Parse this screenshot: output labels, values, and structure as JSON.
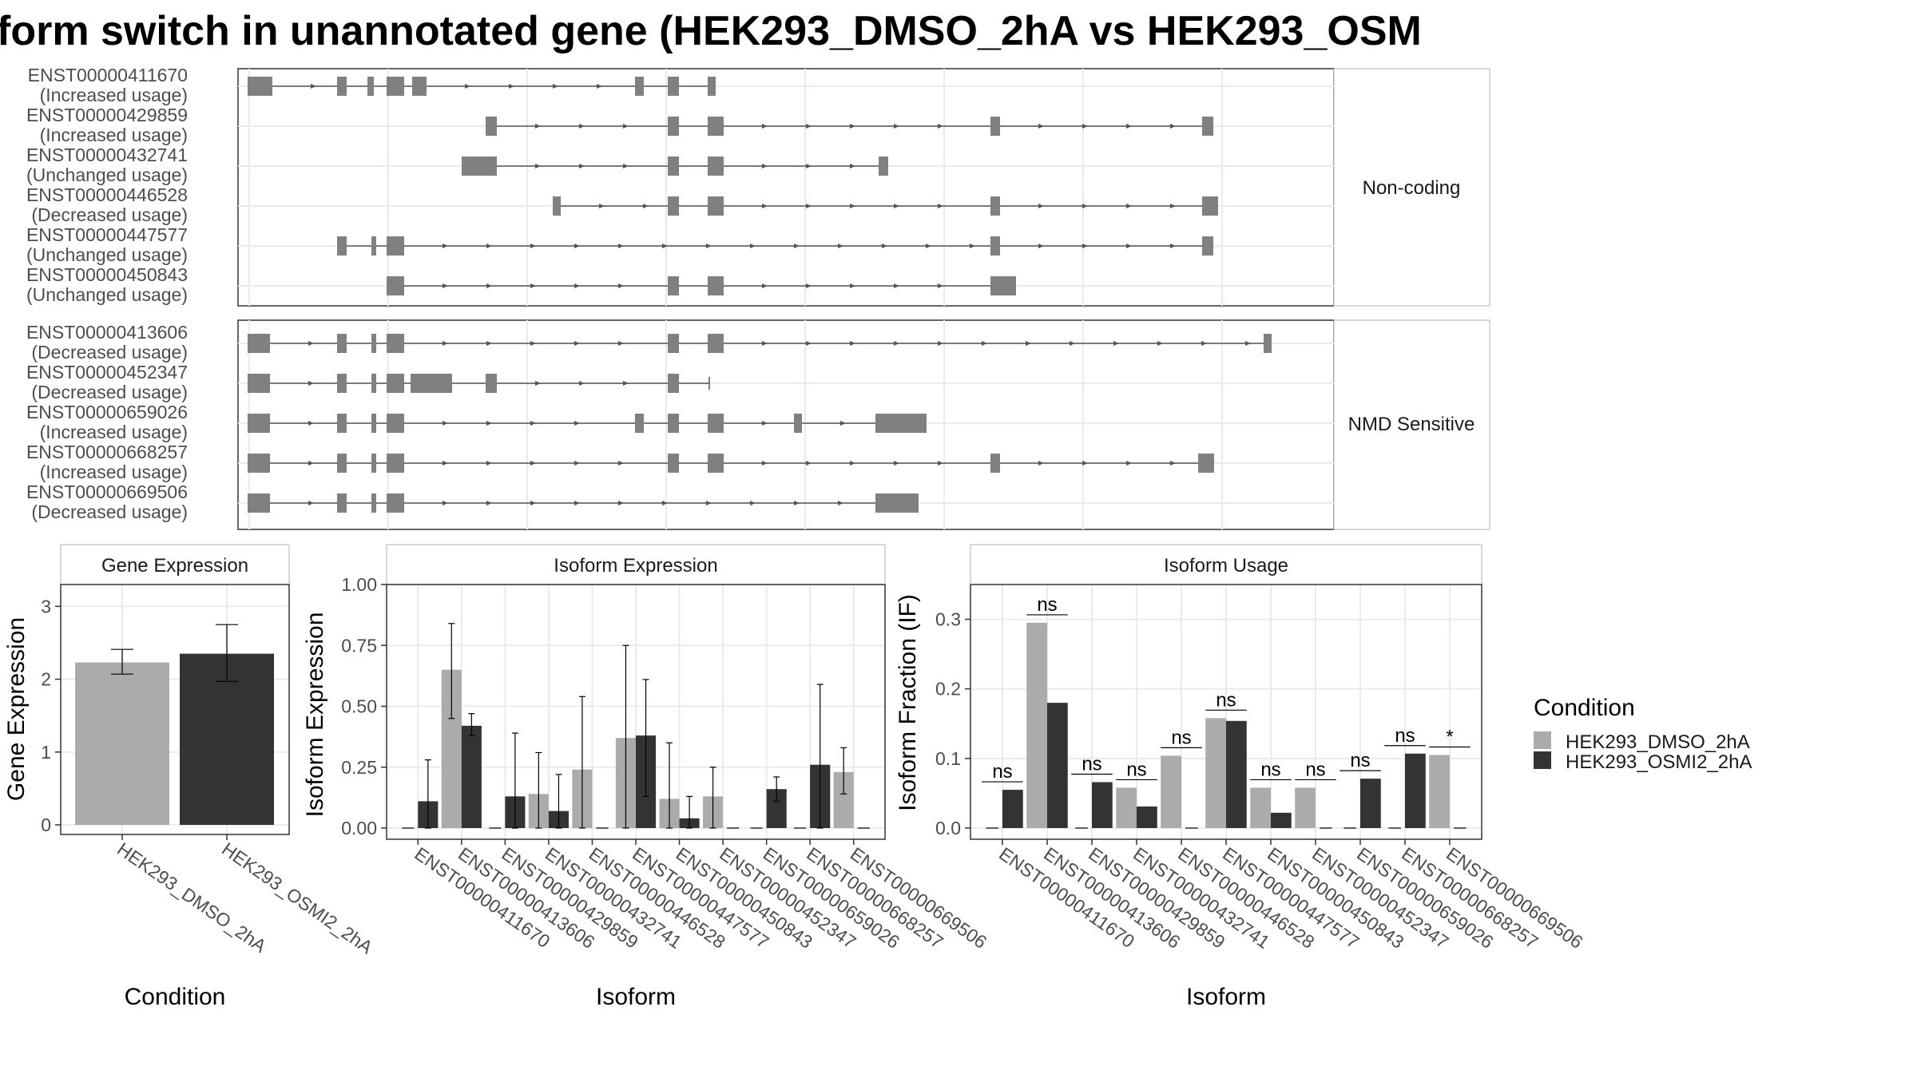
{
  "title": "form switch in unannotated gene (HEK293_DMSO_2hA vs HEK293_OSM",
  "colors": {
    "exon": "#808080",
    "intron": "#555555",
    "dmso": "#ababab",
    "osmi": "#333333",
    "grid": "#ebebeb",
    "frame": "#333333",
    "strip_bg": "#ffffff"
  },
  "structure": {
    "chart_type": "transcript structure diagram",
    "groups": [
      {
        "label": "Non-coding",
        "transcripts": [
          {
            "id": "ENST00000411670",
            "usage": "(Increased usage)"
          },
          {
            "id": "ENST00000429859",
            "usage": "(Increased usage)"
          },
          {
            "id": "ENST00000432741",
            "usage": "(Unchanged usage)"
          },
          {
            "id": "ENST00000446528",
            "usage": "(Decreased usage)"
          },
          {
            "id": "ENST00000447577",
            "usage": "(Unchanged usage)"
          },
          {
            "id": "ENST00000450843",
            "usage": "(Unchanged usage)"
          }
        ]
      },
      {
        "label": "NMD Sensitive",
        "transcripts": [
          {
            "id": "ENST00000413606",
            "usage": "(Decreased usage)"
          },
          {
            "id": "ENST00000452347",
            "usage": "(Decreased usage)"
          },
          {
            "id": "ENST00000659026",
            "usage": "(Increased usage)"
          },
          {
            "id": "ENST00000668257",
            "usage": "(Increased usage)"
          },
          {
            "id": "ENST00000669506",
            "usage": "(Decreased usage)"
          }
        ]
      }
    ]
  },
  "legend": {
    "title": "Condition",
    "items": [
      {
        "label": "HEK293_DMSO_2hA",
        "color": "#ababab"
      },
      {
        "label": "HEK293_OSMI2_2hA",
        "color": "#333333"
      }
    ]
  },
  "chart_data": [
    {
      "type": "bar",
      "title": "Gene Expression",
      "xlabel": "Condition",
      "ylabel": "Gene Expression",
      "ylim": [
        0,
        3.3
      ],
      "yticks": [
        "0",
        "1",
        "2",
        "3"
      ],
      "categories": [
        "HEK293_DMSO_2hA",
        "HEK293_OSMI2_2hA"
      ],
      "values": [
        2.23,
        2.35
      ],
      "errors": [
        [
          2.07,
          2.41
        ],
        [
          1.97,
          2.75
        ]
      ]
    },
    {
      "type": "bar",
      "title": "Isoform Expression",
      "xlabel": "Isoform",
      "ylabel": "Isoform Expression",
      "ylim": [
        0,
        1.0
      ],
      "yticks": [
        "0.00",
        "0.25",
        "0.50",
        "0.75",
        "1.00"
      ],
      "categories": [
        "ENST00000411670",
        "ENST00000413606",
        "ENST00000429859",
        "ENST00000432741",
        "ENST00000446528",
        "ENST00000447577",
        "ENST00000450843",
        "ENST00000452347",
        "ENST00000659026",
        "ENST00000668257",
        "ENST00000669506"
      ],
      "series": [
        {
          "name": "HEK293_DMSO_2hA",
          "values": [
            0,
            0.65,
            0,
            0.14,
            0.24,
            0.37,
            0.12,
            0.13,
            0,
            0,
            0.23
          ]
        },
        {
          "name": "HEK293_OSMI2_2hA",
          "values": [
            0.11,
            0.42,
            0.13,
            0.07,
            0,
            0.38,
            0.04,
            0,
            0.16,
            0.26,
            0
          ]
        }
      ],
      "errors": [
        {
          "name": "HEK293_DMSO_2hA",
          "ranges": [
            null,
            [
              0.45,
              0.84
            ],
            null,
            [
              0.0,
              0.31
            ],
            [
              0.0,
              0.54
            ],
            [
              0.0,
              0.75
            ],
            [
              0.0,
              0.35
            ],
            [
              0.0,
              0.25
            ],
            null,
            null,
            [
              0.14,
              0.33
            ]
          ]
        },
        {
          "name": "HEK293_OSMI2_2hA",
          "ranges": [
            [
              0.0,
              0.28
            ],
            [
              0.38,
              0.47
            ],
            [
              0.0,
              0.39
            ],
            [
              0.0,
              0.22
            ],
            null,
            [
              0.13,
              0.61
            ],
            [
              0.0,
              0.13
            ],
            null,
            [
              0.11,
              0.21
            ],
            [
              0.0,
              0.59
            ],
            null
          ]
        }
      ]
    },
    {
      "type": "bar",
      "title": "Isoform Usage",
      "xlabel": "Isoform",
      "ylabel": "Isoform Fraction (IF)",
      "ylim": [
        0,
        0.35
      ],
      "yticks": [
        "0.0",
        "0.1",
        "0.2",
        "0.3"
      ],
      "categories": [
        "ENST00000411670",
        "ENST00000413606",
        "ENST00000429859",
        "ENST00000432741",
        "ENST00000446528",
        "ENST00000447577",
        "ENST00000450843",
        "ENST00000452347",
        "ENST00000659026",
        "ENST00000668257",
        "ENST00000669506"
      ],
      "series": [
        {
          "name": "HEK293_DMSO_2hA",
          "values": [
            0,
            0.295,
            0,
            0.058,
            0.104,
            0.158,
            0.058,
            0.058,
            0,
            0,
            0.105
          ]
        },
        {
          "name": "HEK293_OSMI2_2hA",
          "values": [
            0.055,
            0.18,
            0.066,
            0.031,
            0,
            0.154,
            0.022,
            0,
            0.071,
            0.107,
            0
          ]
        }
      ],
      "significance": [
        "ns",
        "ns",
        "ns",
        "ns",
        "ns",
        "ns",
        "ns",
        "ns",
        "ns",
        "ns",
        "*"
      ]
    }
  ]
}
